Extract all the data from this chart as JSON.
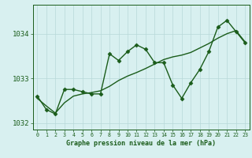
{
  "xlabel": "Graphe pression niveau de la mer (hPa)",
  "hours": [
    0,
    1,
    2,
    3,
    4,
    5,
    6,
    7,
    8,
    9,
    10,
    11,
    12,
    13,
    14,
    15,
    16,
    17,
    18,
    19,
    20,
    21,
    22,
    23
  ],
  "pressure_detailed": [
    1032.6,
    1032.3,
    1032.2,
    1032.75,
    1032.75,
    1032.7,
    1032.65,
    1032.65,
    1033.55,
    1033.4,
    1033.6,
    1033.75,
    1033.65,
    1033.35,
    1033.35,
    1032.85,
    1032.55,
    1032.9,
    1033.2,
    1033.6,
    1034.15,
    1034.3,
    1034.05,
    1033.8
  ],
  "pressure_smooth": [
    1032.55,
    1032.38,
    1032.22,
    1032.45,
    1032.6,
    1032.65,
    1032.68,
    1032.72,
    1032.82,
    1032.95,
    1033.05,
    1033.13,
    1033.22,
    1033.32,
    1033.42,
    1033.48,
    1033.52,
    1033.58,
    1033.68,
    1033.78,
    1033.9,
    1034.0,
    1034.07,
    1033.82
  ],
  "line_color": "#1a5c1a",
  "bg_color": "#d8f0f0",
  "grid_color": "#b8d8d8",
  "text_color": "#1a5c1a",
  "ylim_min": 1031.85,
  "ylim_max": 1034.65,
  "yticks": [
    1032,
    1033,
    1034
  ],
  "marker": "D",
  "marker_size": 2.5,
  "line_width": 1.0,
  "xlabel_fontsize": 6.0,
  "ytick_fontsize": 6.5,
  "xtick_fontsize": 4.8
}
